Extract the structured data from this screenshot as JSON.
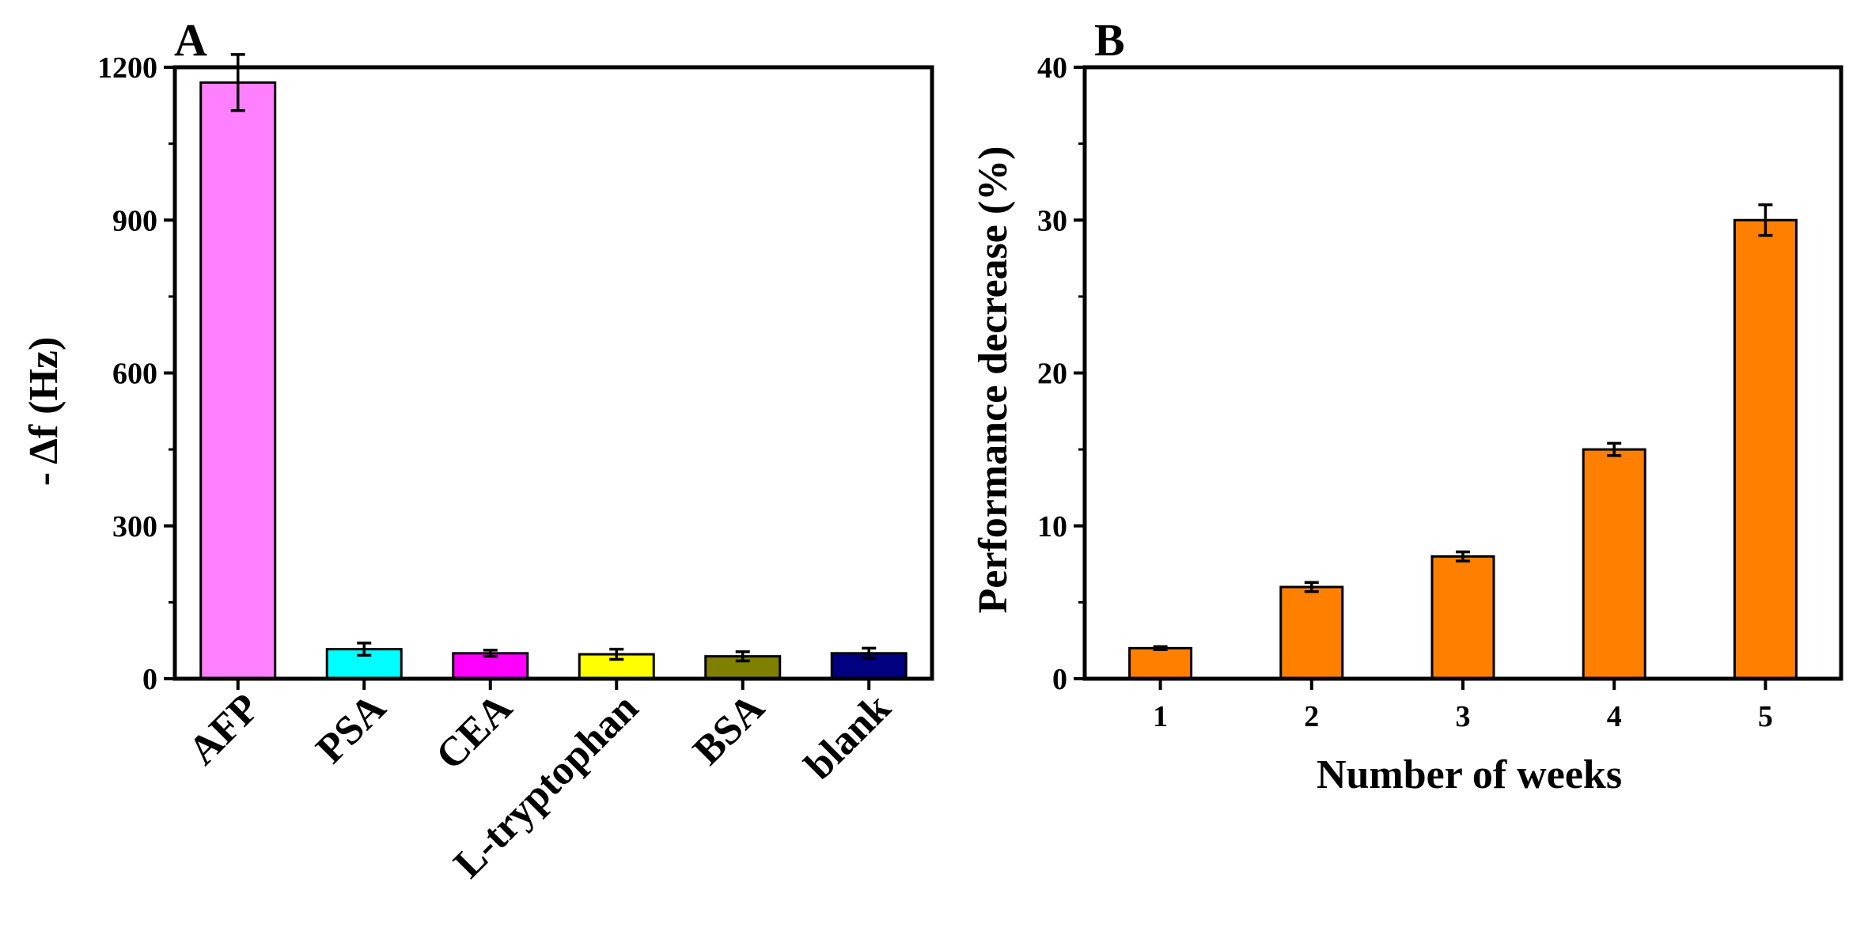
{
  "chart_data": [
    {
      "panel_label": "A",
      "type": "bar",
      "categories": [
        "AFP",
        "PSA",
        "CEA",
        "L-tryptophan",
        "BSA",
        "blank"
      ],
      "values": [
        1170,
        58,
        50,
        48,
        44,
        50
      ],
      "errors": [
        55,
        12,
        6,
        10,
        9,
        10
      ],
      "colors": [
        "#ff80ff",
        "#00ffff",
        "#ff00ff",
        "#ffff00",
        "#808000",
        "#000080"
      ],
      "xlabel": "",
      "ylabel": "- Δf (Hz)",
      "ylim": [
        0,
        1200
      ],
      "yticks": [
        "0",
        "300",
        "600",
        "900",
        "1200"
      ]
    },
    {
      "panel_label": "B",
      "type": "bar",
      "categories": [
        "1",
        "2",
        "3",
        "4",
        "5"
      ],
      "values": [
        2,
        6,
        8,
        15,
        30
      ],
      "errors": [
        0.1,
        0.3,
        0.3,
        0.4,
        1.0
      ],
      "colors": [
        "#ff8000"
      ],
      "xlabel": "Number of weeks",
      "ylabel": "Performance decrease (%)",
      "ylim": [
        0,
        40
      ],
      "yticks": [
        "0",
        "10",
        "20",
        "30",
        "40"
      ]
    }
  ]
}
